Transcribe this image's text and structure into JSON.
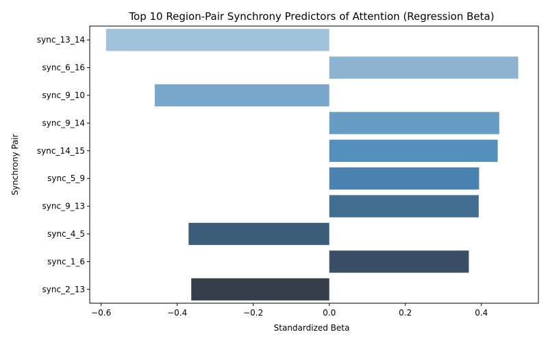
{
  "chart_data": {
    "type": "bar",
    "orientation": "horizontal",
    "title": "Top 10 Region-Pair Synchrony Predictors of Attention (Regression Beta)",
    "xlabel": "Standardized Beta",
    "ylabel": "Synchrony Pair",
    "xlim": [
      -0.63,
      0.55
    ],
    "xticks": [
      -0.6,
      -0.4,
      -0.2,
      0.0,
      0.2,
      0.4
    ],
    "xtick_labels": [
      "−0.6",
      "−0.4",
      "−0.2",
      "0.0",
      "0.2",
      "0.4"
    ],
    "grid": false,
    "categories": [
      "sync_13_14",
      "sync_6_16",
      "sync_9_10",
      "sync_9_14",
      "sync_14_15",
      "sync_5_9",
      "sync_9_13",
      "sync_4_5",
      "sync_1_6",
      "sync_2_13"
    ],
    "values": [
      -0.587,
      0.497,
      -0.459,
      0.447,
      0.443,
      0.394,
      0.393,
      -0.37,
      0.367,
      -0.363
    ],
    "colors": [
      "#a0c3d9",
      "#8db3d0",
      "#7aa7cc",
      "#679cc5",
      "#558fbd",
      "#4a82b0",
      "#416d8e",
      "#3c5d7a",
      "#3a4e66",
      "#343f4a"
    ]
  }
}
